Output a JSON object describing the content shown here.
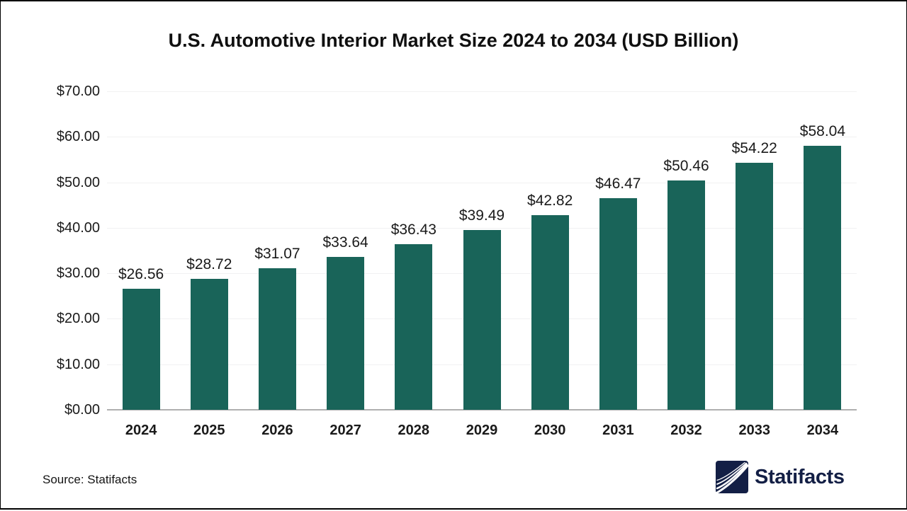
{
  "title": "U.S. Automotive Interior Market Size 2024 to 2034 (USD Billion)",
  "source_note": "Source: Statifacts",
  "brand": {
    "name": "Statifacts",
    "logo_icon": "statifacts-waves-icon",
    "logo_color": "#131F45"
  },
  "colors": {
    "bar": "#196459",
    "gridline": "#F1F1F2",
    "axis_baseline": "#B0B0B0",
    "text": "#1A1A1A",
    "background": "#FFFFFF"
  },
  "chart_data": {
    "type": "bar",
    "title": "U.S. Automotive Interior Market Size 2024 to 2034 (USD Billion)",
    "categories": [
      "2024",
      "2025",
      "2026",
      "2027",
      "2028",
      "2029",
      "2030",
      "2031",
      "2032",
      "2033",
      "2034"
    ],
    "values": [
      26.56,
      28.72,
      31.07,
      33.64,
      36.43,
      39.49,
      42.82,
      46.47,
      50.46,
      54.22,
      58.04
    ],
    "value_labels": [
      "$26.56",
      "$28.72",
      "$31.07",
      "$33.64",
      "$36.43",
      "$39.49",
      "$42.82",
      "$46.47",
      "$50.46",
      "$54.22",
      "$58.04"
    ],
    "xlabel": "",
    "ylabel": "",
    "ylim": [
      0,
      70
    ],
    "yticks": {
      "values": [
        0,
        10,
        20,
        30,
        40,
        50,
        60,
        70
      ],
      "labels": [
        "$0.00",
        "$10.00",
        "$20.00",
        "$30.00",
        "$40.00",
        "$50.00",
        "$60.00",
        "$70.00"
      ]
    },
    "grid": true,
    "legend": false,
    "unit": "USD Billion"
  }
}
